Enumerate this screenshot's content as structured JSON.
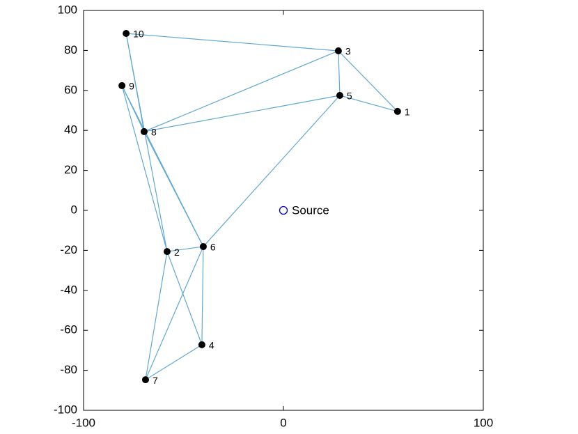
{
  "chart_data": {
    "type": "scatter",
    "xlim": [
      -100,
      100
    ],
    "ylim": [
      -100,
      100
    ],
    "xticks": [
      -100,
      0,
      100
    ],
    "yticks": [
      -100,
      -80,
      -60,
      -40,
      -20,
      0,
      20,
      40,
      60,
      80,
      100
    ],
    "points": {
      "color": "#000000",
      "labels": [
        "1",
        "2",
        "3",
        "4",
        "5",
        "6",
        "7",
        "8",
        "9",
        "10"
      ],
      "x": [
        57.1,
        -58.2,
        27.5,
        -40.8,
        28.2,
        -40.1,
        -69,
        -69.7,
        -80.8,
        -78.7
      ],
      "y": [
        49.5,
        -20.6,
        79.8,
        -67.2,
        57.5,
        -18.1,
        -84.7,
        39.4,
        62.4,
        88.5
      ]
    },
    "source": {
      "label": "Source",
      "x": 0,
      "y": 0,
      "color": "#0000cc"
    },
    "edge_color": "#5fa8d3",
    "edges": [
      [
        9,
        2
      ],
      [
        9,
        7
      ],
      [
        9,
        1
      ],
      [
        2,
        0
      ],
      [
        2,
        4
      ],
      [
        2,
        7
      ],
      [
        4,
        0
      ],
      [
        4,
        7
      ],
      [
        4,
        5
      ],
      [
        8,
        7
      ],
      [
        8,
        5
      ],
      [
        8,
        1
      ],
      [
        7,
        5
      ],
      [
        1,
        5
      ],
      [
        1,
        3
      ],
      [
        1,
        6
      ],
      [
        5,
        3
      ],
      [
        5,
        6
      ],
      [
        3,
        6
      ]
    ]
  }
}
